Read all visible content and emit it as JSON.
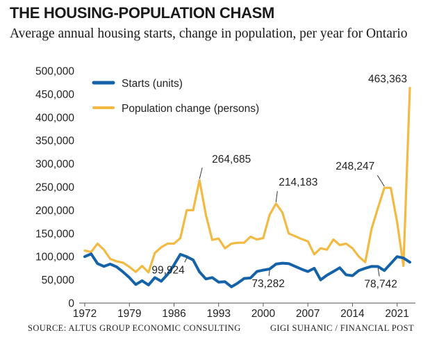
{
  "title": "THE HOUSING-POPULATION CHASM",
  "subtitle": "Average annual housing starts, change in population, per year for Ontario",
  "source": "SOURCE: ALTUS GROUP ECONOMIC CONSULTING",
  "credit": "GIGI SUHANIC / FINANCIAL POST",
  "chart_data": {
    "type": "line",
    "title": "THE HOUSING-POPULATION CHASM",
    "xlabel": "",
    "ylabel": "",
    "x": [
      1972,
      1973,
      1974,
      1975,
      1976,
      1977,
      1978,
      1979,
      1980,
      1981,
      1982,
      1983,
      1984,
      1985,
      1986,
      1987,
      1988,
      1989,
      1990,
      1991,
      1992,
      1993,
      1994,
      1995,
      1996,
      1997,
      1998,
      1999,
      2000,
      2001,
      2002,
      2003,
      2004,
      2005,
      2006,
      2007,
      2008,
      2009,
      2010,
      2011,
      2012,
      2013,
      2014,
      2015,
      2016,
      2017,
      2018,
      2019,
      2020,
      2021,
      2022,
      2023
    ],
    "xticks": [
      "1972",
      "1979",
      "1986",
      "1993",
      "2000",
      "2007",
      "2014",
      "2021"
    ],
    "yticks": [
      "0",
      "50,000",
      "100,000",
      "150,000",
      "200,000",
      "250,000",
      "300,000",
      "350,000",
      "400,000",
      "450,000",
      "500,000"
    ],
    "ylim": [
      0,
      500000
    ],
    "grid": false,
    "legend_position": "top-left",
    "series": [
      {
        "name": "Starts (units)",
        "color": "#1462a8",
        "values": [
          100000,
          106000,
          85000,
          79000,
          84000,
          78000,
          67000,
          55000,
          40000,
          48000,
          39000,
          55000,
          47000,
          62000,
          82000,
          105000,
          99924,
          93000,
          67000,
          52000,
          55000,
          45000,
          46000,
          35000,
          43000,
          53000,
          54000,
          68000,
          71000,
          73282,
          84000,
          86000,
          85000,
          79000,
          73000,
          68000,
          75000,
          50000,
          60000,
          68000,
          76000,
          61000,
          59000,
          70000,
          75000,
          79000,
          78742,
          70000,
          85000,
          100000,
          97000,
          88000
        ]
      },
      {
        "name": "Population change (persons)",
        "color": "#f2ba42",
        "values": [
          113000,
          110000,
          128000,
          115000,
          95000,
          90000,
          87000,
          78000,
          67000,
          80000,
          66000,
          108000,
          120000,
          128000,
          128000,
          140000,
          200000,
          200000,
          264685,
          190000,
          136000,
          139000,
          118000,
          128000,
          130000,
          130000,
          143000,
          137000,
          140000,
          190000,
          214183,
          195000,
          150000,
          144000,
          138000,
          133000,
          105000,
          118000,
          115000,
          137000,
          125000,
          128000,
          118000,
          100000,
          88000,
          160000,
          205000,
          248247,
          248247,
          175000,
          80000,
          463363
        ]
      }
    ],
    "annotations": [
      {
        "label": "264,685",
        "series": "Population change (persons)",
        "x": 1990,
        "value": 264685
      },
      {
        "label": "214,183",
        "series": "Population change (persons)",
        "x": 2002,
        "value": 214183
      },
      {
        "label": "248,247",
        "series": "Population change (persons)",
        "x": 2019,
        "value": 248247
      },
      {
        "label": "463,363",
        "series": "Population change (persons)",
        "x": 2023,
        "value": 463363
      },
      {
        "label": "99,924",
        "series": "Starts (units)",
        "x": 1988,
        "value": 99924
      },
      {
        "label": "73,282",
        "series": "Starts (units)",
        "x": 2001,
        "value": 73282
      },
      {
        "label": "78,742",
        "series": "Starts (units)",
        "x": 2018,
        "value": 78742
      }
    ]
  }
}
